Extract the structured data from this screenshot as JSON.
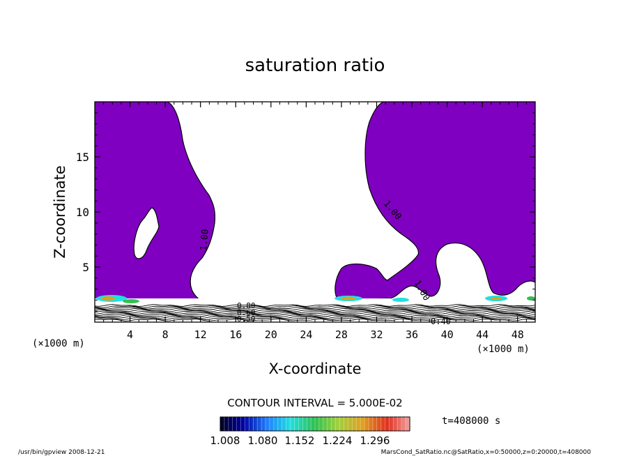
{
  "chart_data": {
    "type": "contour",
    "title": "saturation ratio",
    "xlabel": "X-coordinate",
    "ylabel": "Z-coordinate",
    "x_unit": "(×1000 m)",
    "z_unit": "(×1000 m)",
    "xlim": [
      0,
      50
    ],
    "ylim": [
      0,
      20
    ],
    "x_ticks": [
      4,
      8,
      12,
      16,
      20,
      24,
      28,
      32,
      36,
      40,
      44,
      48
    ],
    "y_ticks": [
      5,
      10,
      15
    ],
    "contour_interval_text": "CONTOUR INTERVAL = 5.000E-02",
    "contour_labels": [
      "1.00",
      "1.00",
      "1.00",
      "0.80",
      "0.60",
      "0.50",
      "0.40"
    ],
    "time_label": "t=408000 s",
    "colorbar": {
      "labels": [
        "1.008",
        "1.080",
        "1.152",
        "1.224",
        "1.296"
      ],
      "min": 1.008,
      "max": 1.296
    },
    "fill_color": "#7F00C0"
  },
  "footer": {
    "left": "/usr/bin/gpview   2008-12-21",
    "right": "MarsCond_SatRatio.nc@SatRatio,x=0:50000,z=0:20000,t=408000"
  }
}
